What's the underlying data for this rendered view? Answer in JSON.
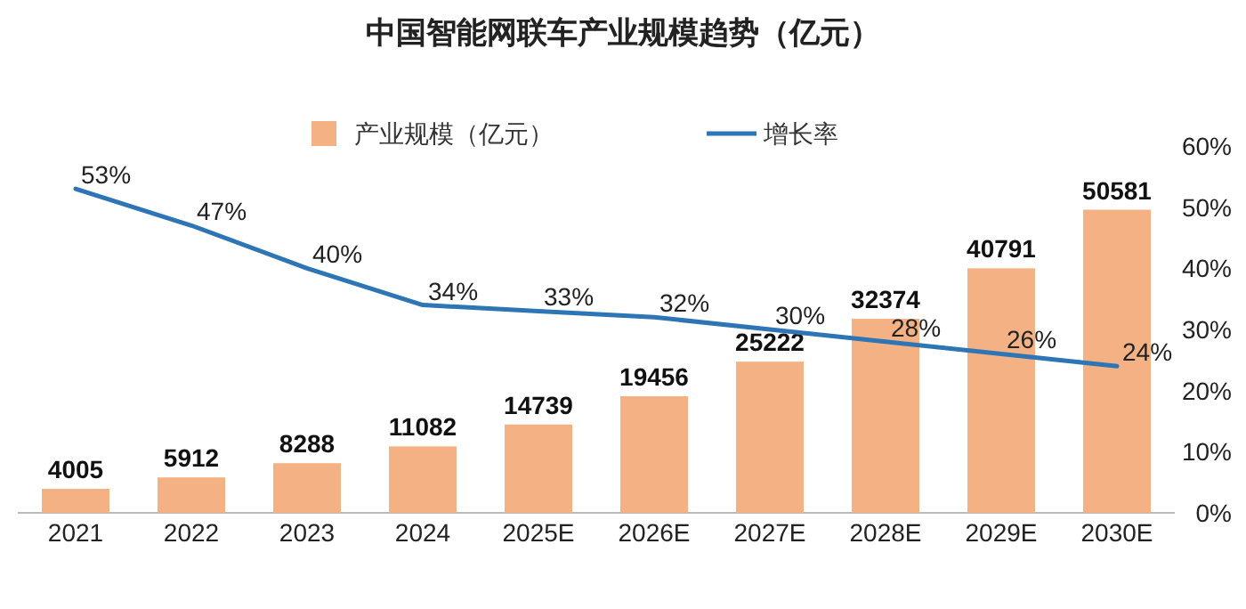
{
  "chart_data": {
    "type": "bar",
    "title": "中国智能网联车产业规模趋势（亿元）",
    "categories": [
      "2021",
      "2022",
      "2023",
      "2024",
      "2025E",
      "2026E",
      "2027E",
      "2028E",
      "2029E",
      "2030E"
    ],
    "series": [
      {
        "name": "产业规模（亿元）",
        "color": "#f4b183",
        "values": [
          4005,
          5912,
          8288,
          11082,
          14739,
          19456,
          25222,
          32374,
          40791,
          50581
        ],
        "value_labels": [
          "4005",
          "5912",
          "8288",
          "11082",
          "14739",
          "19456",
          "25222",
          "32374",
          "40791",
          "50581"
        ]
      },
      {
        "name": "增长率",
        "type": "line",
        "axis": "y2",
        "color": "#2e75b6",
        "values": [
          53,
          47,
          40,
          34,
          33,
          32,
          30,
          28,
          26,
          24
        ],
        "value_labels": [
          "53%",
          "47%",
          "40%",
          "34%",
          "33%",
          "32%",
          "30%",
          "28%",
          "26%",
          "24%"
        ]
      }
    ],
    "y2lim": [
      0,
      60
    ],
    "y2ticks": [
      {
        "value": 0,
        "label": "0%"
      },
      {
        "value": 10,
        "label": "10%"
      },
      {
        "value": 20,
        "label": "20%"
      },
      {
        "value": 30,
        "label": "30%"
      },
      {
        "value": 40,
        "label": "40%"
      },
      {
        "value": 50,
        "label": "50%"
      },
      {
        "value": 60,
        "label": "60%"
      }
    ],
    "legend": "top"
  }
}
